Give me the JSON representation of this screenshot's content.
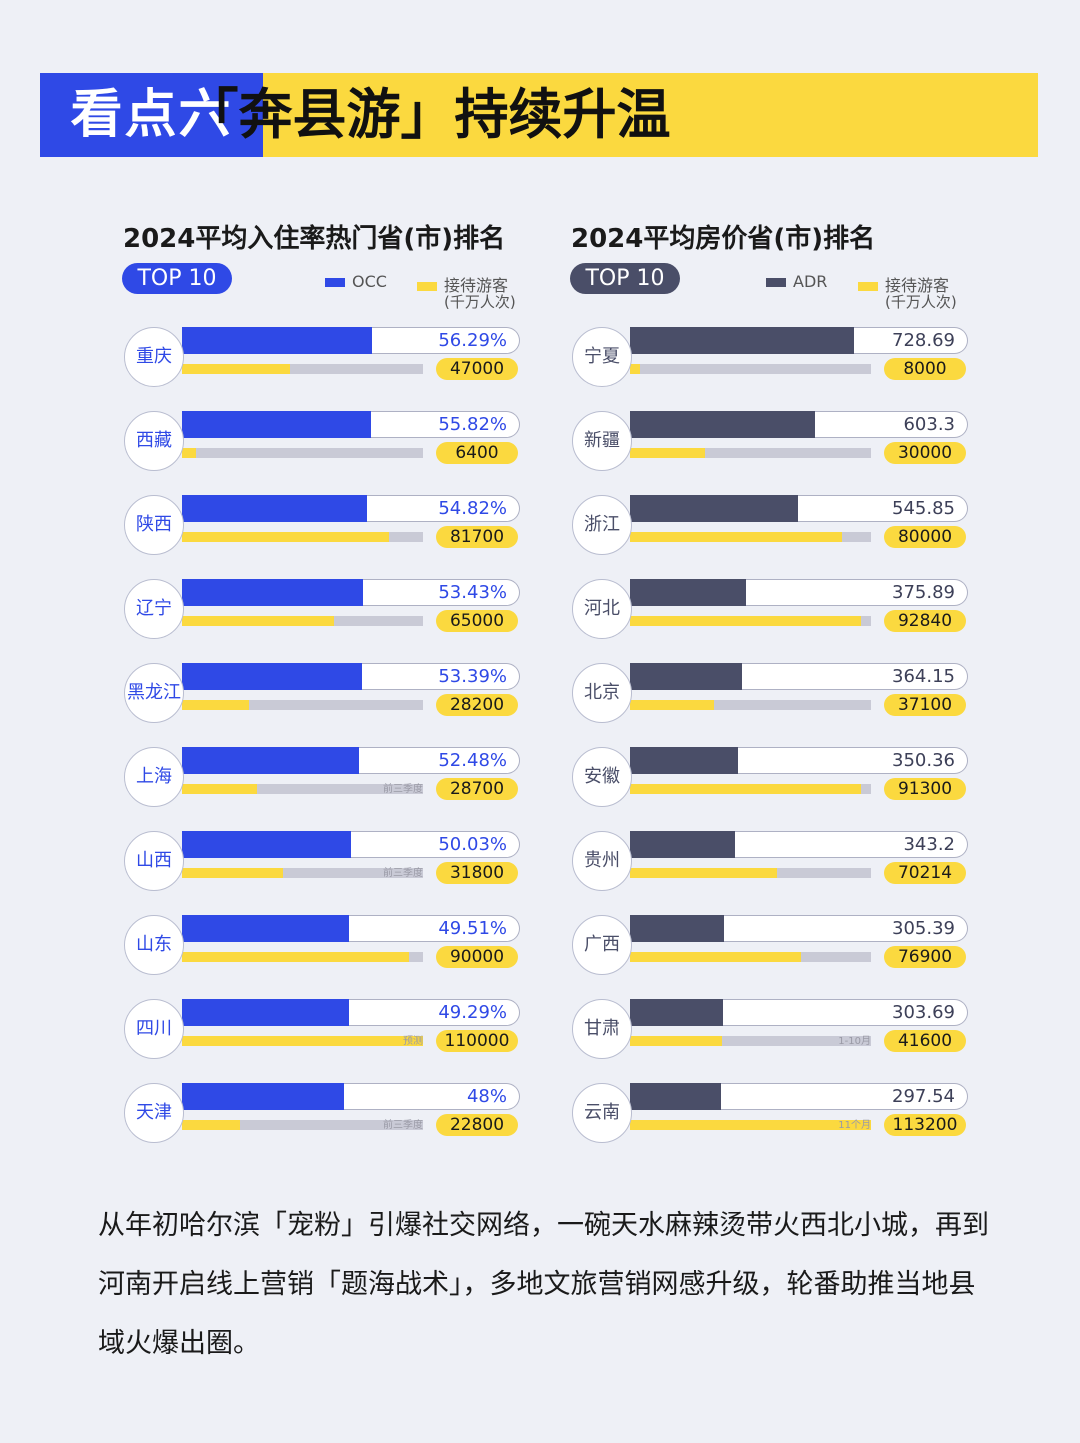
{
  "header": {
    "tag": "看点六",
    "title": "「奔县游」持续升温"
  },
  "chart_data": [
    {
      "type": "bar",
      "title": "2024平均入住率热门省(市)排名",
      "badge": "TOP 10",
      "legend": [
        "OCC",
        "接待游客",
        "(千万人次)"
      ],
      "categories": [
        "重庆",
        "西藏",
        "陕西",
        "辽宁",
        "黑龙江",
        "上海",
        "山西",
        "山东",
        "四川",
        "天津"
      ],
      "series": [
        {
          "name": "OCC",
          "values": [
            56.29,
            55.82,
            54.82,
            53.43,
            53.39,
            52.48,
            50.03,
            49.51,
            49.29,
            48
          ],
          "labels": [
            "56.29%",
            "55.82%",
            "54.82%",
            "53.43%",
            "53.39%",
            "52.48%",
            "50.03%",
            "49.51%",
            "49.29%",
            "48%"
          ]
        },
        {
          "name": "接待游客",
          "values": [
            47000,
            6400,
            81700,
            65000,
            28200,
            28700,
            31800,
            90000,
            110000,
            22800
          ],
          "labels": [
            "47000",
            "6400",
            "81700",
            "65000",
            "28200",
            "28700",
            "31800",
            "90000",
            "110000",
            "22800"
          ]
        }
      ],
      "notes": [
        "",
        "",
        "",
        "",
        "",
        "前三季度",
        "前三季度",
        "",
        "预测",
        "前三季度"
      ],
      "occ_range": [
        0,
        100
      ],
      "visitor_fraction": [
        0.45,
        0.06,
        0.86,
        0.63,
        0.28,
        0.31,
        0.42,
        0.94,
        1.0,
        0.24
      ],
      "colors": {
        "primary": "#2f49e6",
        "secondary": "#fbd93f"
      }
    },
    {
      "type": "bar",
      "title": "2024平均房价省(市)排名",
      "badge": "TOP 10",
      "legend": [
        "ADR",
        "接待游客",
        "(千万人次)"
      ],
      "categories": [
        "宁夏",
        "新疆",
        "浙江",
        "河北",
        "北京",
        "安徽",
        "贵州",
        "广西",
        "甘肃",
        "云南"
      ],
      "series": [
        {
          "name": "ADR",
          "values": [
            728.69,
            603.3,
            545.85,
            375.89,
            364.15,
            350.36,
            343.2,
            305.39,
            303.69,
            297.54
          ],
          "labels": [
            "728.69",
            "603.3",
            "545.85",
            "375.89",
            "364.15",
            "350.36",
            "343.2",
            "305.39",
            "303.69",
            "297.54"
          ]
        },
        {
          "name": "接待游客",
          "values": [
            8000,
            30000,
            80000,
            92840,
            37100,
            91300,
            70214,
            76900,
            41600,
            113200
          ],
          "labels": [
            "8000",
            "30000",
            "80000",
            "92840",
            "37100",
            "91300",
            "70214",
            "76900",
            "41600",
            "113200"
          ]
        }
      ],
      "notes": [
        "",
        "",
        "",
        "",
        "",
        "",
        "",
        "",
        "1-10月",
        "11个月"
      ],
      "adr_range": [
        0,
        1100
      ],
      "visitor_fraction": [
        0.04,
        0.31,
        0.88,
        0.96,
        0.35,
        0.96,
        0.61,
        0.71,
        0.38,
        1.0
      ],
      "colors": {
        "primary": "#4a4e68",
        "secondary": "#fbd93f"
      }
    }
  ],
  "paragraph": "从年初哈尔滨「宠粉」引爆社交网络，一碗天水麻辣烫带火西北小城，再到河南开启线上营销「题海战术」，多地文旅营销网感升级，轮番助推当地县域火爆出圈。"
}
